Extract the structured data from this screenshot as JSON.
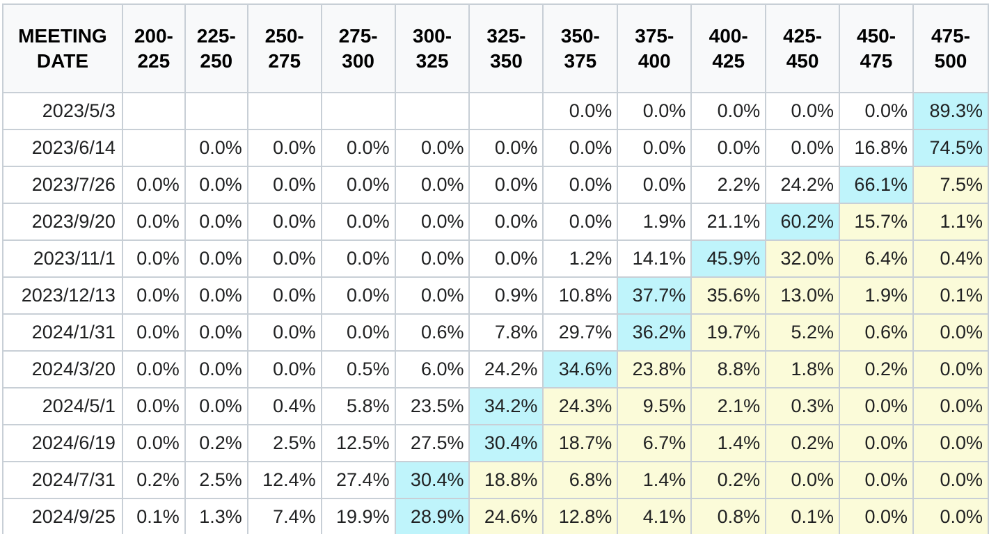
{
  "colors": {
    "header_bg": "#f8f9fa",
    "border": "#c8cfd6",
    "most_likely_bg": "#bff4fb",
    "above_most_likely_bg": "#fbfbd9",
    "plain_bg": "#ffffff"
  },
  "table": {
    "headers": [
      [
        "MEETING",
        "DATE"
      ],
      [
        "200-",
        "225"
      ],
      [
        "225-",
        "250"
      ],
      [
        "250-",
        "275"
      ],
      [
        "275-",
        "300"
      ],
      [
        "300-",
        "325"
      ],
      [
        "325-",
        "350"
      ],
      [
        "350-",
        "375"
      ],
      [
        "375-",
        "400"
      ],
      [
        "400-",
        "425"
      ],
      [
        "425-",
        "450"
      ],
      [
        "450-",
        "475"
      ],
      [
        "475-",
        "500"
      ]
    ],
    "rows": [
      {
        "date": "2023/5/3",
        "cells": [
          "",
          "",
          "",
          "",
          "",
          "",
          "0.0%",
          "0.0%",
          "0.0%",
          "0.0%",
          "0.0%",
          "89.3%"
        ],
        "shade": [
          "n",
          "n",
          "n",
          "n",
          "n",
          "n",
          "n",
          "n",
          "n",
          "n",
          "n",
          "b"
        ]
      },
      {
        "date": "2023/6/14",
        "cells": [
          "",
          "0.0%",
          "0.0%",
          "0.0%",
          "0.0%",
          "0.0%",
          "0.0%",
          "0.0%",
          "0.0%",
          "0.0%",
          "16.8%",
          "74.5%"
        ],
        "shade": [
          "n",
          "n",
          "n",
          "n",
          "n",
          "n",
          "n",
          "n",
          "n",
          "n",
          "n",
          "b"
        ]
      },
      {
        "date": "2023/7/26",
        "cells": [
          "0.0%",
          "0.0%",
          "0.0%",
          "0.0%",
          "0.0%",
          "0.0%",
          "0.0%",
          "0.0%",
          "2.2%",
          "24.2%",
          "66.1%",
          "7.5%"
        ],
        "shade": [
          "n",
          "n",
          "n",
          "n",
          "n",
          "n",
          "n",
          "n",
          "n",
          "n",
          "b",
          "y"
        ]
      },
      {
        "date": "2023/9/20",
        "cells": [
          "0.0%",
          "0.0%",
          "0.0%",
          "0.0%",
          "0.0%",
          "0.0%",
          "0.0%",
          "1.9%",
          "21.1%",
          "60.2%",
          "15.7%",
          "1.1%"
        ],
        "shade": [
          "n",
          "n",
          "n",
          "n",
          "n",
          "n",
          "n",
          "n",
          "n",
          "b",
          "y",
          "y"
        ]
      },
      {
        "date": "2023/11/1",
        "cells": [
          "0.0%",
          "0.0%",
          "0.0%",
          "0.0%",
          "0.0%",
          "0.0%",
          "1.2%",
          "14.1%",
          "45.9%",
          "32.0%",
          "6.4%",
          "0.4%"
        ],
        "shade": [
          "n",
          "n",
          "n",
          "n",
          "n",
          "n",
          "n",
          "n",
          "b",
          "y",
          "y",
          "y"
        ]
      },
      {
        "date": "2023/12/13",
        "cells": [
          "0.0%",
          "0.0%",
          "0.0%",
          "0.0%",
          "0.0%",
          "0.9%",
          "10.8%",
          "37.7%",
          "35.6%",
          "13.0%",
          "1.9%",
          "0.1%"
        ],
        "shade": [
          "n",
          "n",
          "n",
          "n",
          "n",
          "n",
          "n",
          "b",
          "y",
          "y",
          "y",
          "y"
        ]
      },
      {
        "date": "2024/1/31",
        "cells": [
          "0.0%",
          "0.0%",
          "0.0%",
          "0.0%",
          "0.6%",
          "7.8%",
          "29.7%",
          "36.2%",
          "19.7%",
          "5.2%",
          "0.6%",
          "0.0%"
        ],
        "shade": [
          "n",
          "n",
          "n",
          "n",
          "n",
          "n",
          "n",
          "b",
          "y",
          "y",
          "y",
          "y"
        ]
      },
      {
        "date": "2024/3/20",
        "cells": [
          "0.0%",
          "0.0%",
          "0.0%",
          "0.5%",
          "6.0%",
          "24.2%",
          "34.6%",
          "23.8%",
          "8.8%",
          "1.8%",
          "0.2%",
          "0.0%"
        ],
        "shade": [
          "n",
          "n",
          "n",
          "n",
          "n",
          "n",
          "b",
          "y",
          "y",
          "y",
          "y",
          "y"
        ]
      },
      {
        "date": "2024/5/1",
        "cells": [
          "0.0%",
          "0.0%",
          "0.4%",
          "5.8%",
          "23.5%",
          "34.2%",
          "24.3%",
          "9.5%",
          "2.1%",
          "0.3%",
          "0.0%",
          "0.0%"
        ],
        "shade": [
          "n",
          "n",
          "n",
          "n",
          "n",
          "b",
          "y",
          "y",
          "y",
          "y",
          "y",
          "y"
        ]
      },
      {
        "date": "2024/6/19",
        "cells": [
          "0.0%",
          "0.2%",
          "2.5%",
          "12.5%",
          "27.5%",
          "30.4%",
          "18.7%",
          "6.7%",
          "1.4%",
          "0.2%",
          "0.0%",
          "0.0%"
        ],
        "shade": [
          "n",
          "n",
          "n",
          "n",
          "n",
          "b",
          "y",
          "y",
          "y",
          "y",
          "y",
          "y"
        ]
      },
      {
        "date": "2024/7/31",
        "cells": [
          "0.2%",
          "2.5%",
          "12.4%",
          "27.4%",
          "30.4%",
          "18.8%",
          "6.8%",
          "1.4%",
          "0.2%",
          "0.0%",
          "0.0%",
          "0.0%"
        ],
        "shade": [
          "n",
          "n",
          "n",
          "n",
          "b",
          "y",
          "y",
          "y",
          "y",
          "y",
          "y",
          "y"
        ]
      },
      {
        "date": "2024/9/25",
        "cells": [
          "0.1%",
          "1.3%",
          "7.4%",
          "19.9%",
          "28.9%",
          "24.6%",
          "12.8%",
          "4.1%",
          "0.8%",
          "0.1%",
          "0.0%",
          "0.0%"
        ],
        "shade": [
          "n",
          "n",
          "n",
          "n",
          "b",
          "y",
          "y",
          "y",
          "y",
          "y",
          "y",
          "y"
        ]
      }
    ]
  }
}
